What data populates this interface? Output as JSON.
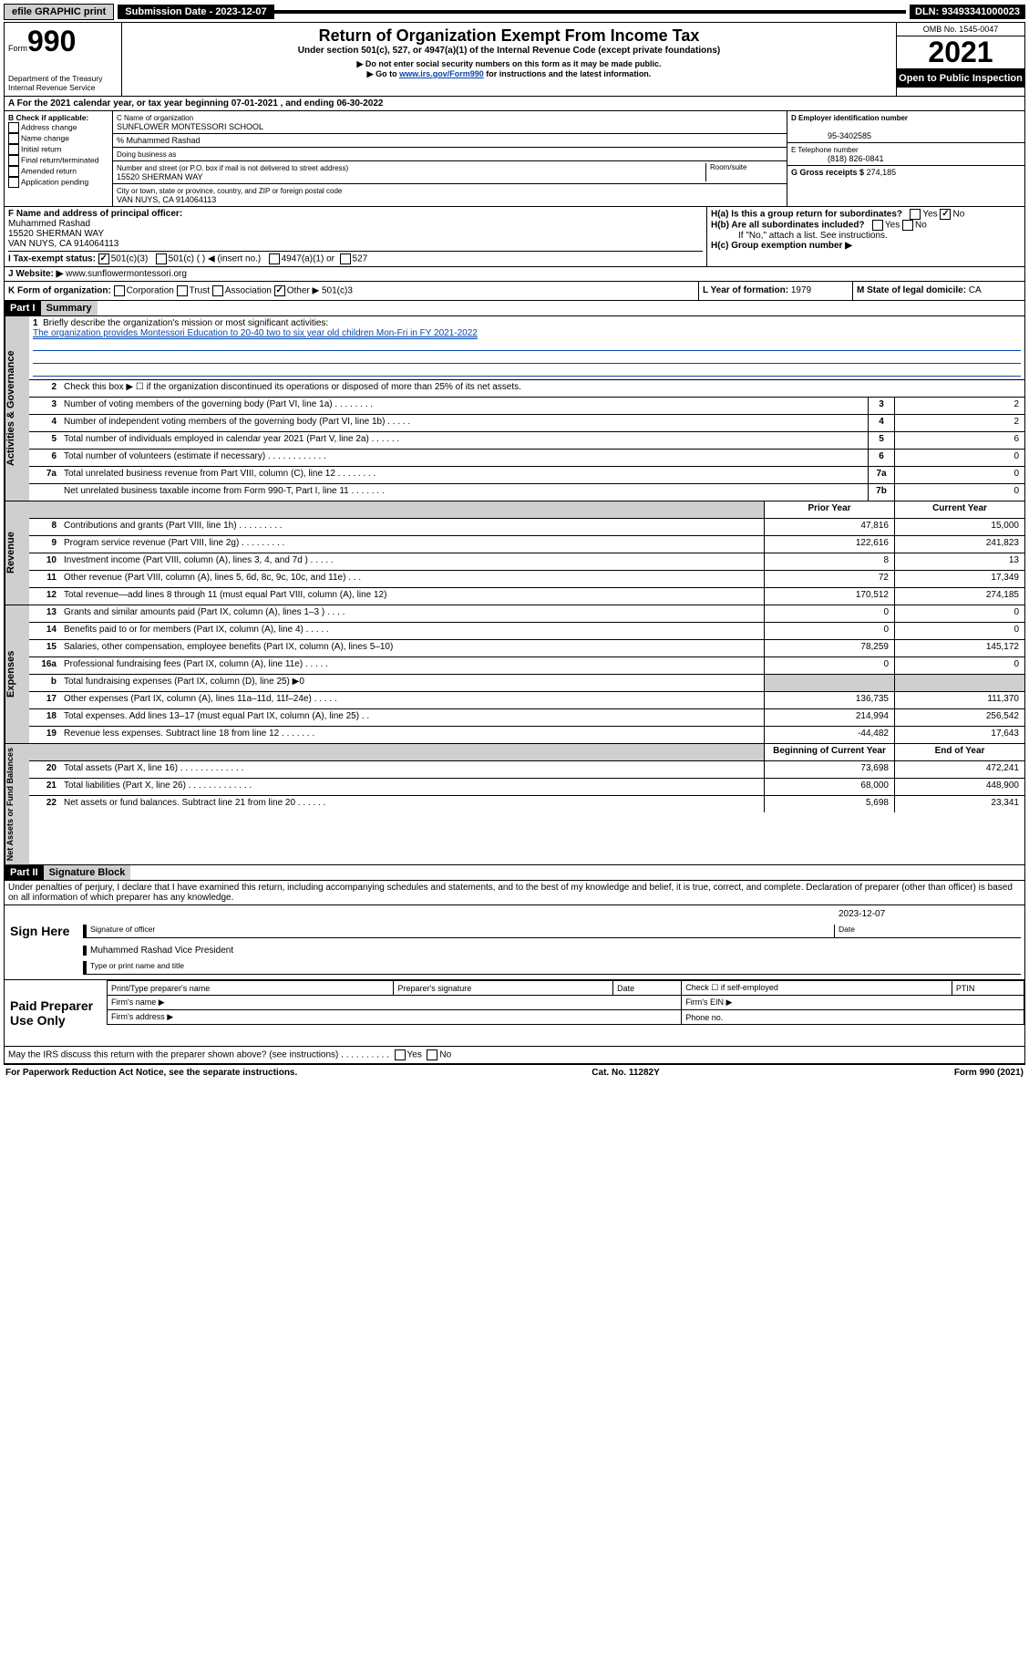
{
  "topbar": {
    "efile": "efile GRAPHIC print",
    "submission_label": "Submission Date - 2023-12-07",
    "dln": "DLN: 93493341000023"
  },
  "header": {
    "form_word": "Form",
    "form_no": "990",
    "dept": "Department of the Treasury\nInternal Revenue Service",
    "title": "Return of Organization Exempt From Income Tax",
    "subtitle": "Under section 501(c), 527, or 4947(a)(1) of the Internal Revenue Code (except private foundations)",
    "note1": "▶ Do not enter social security numbers on this form as it may be made public.",
    "note2_pre": "▶ Go to ",
    "note2_link": "www.irs.gov/Form990",
    "note2_post": " for instructions and the latest information.",
    "omb": "OMB No. 1545-0047",
    "year": "2021",
    "inspect": "Open to Public Inspection"
  },
  "A": {
    "text": "A For the 2021 calendar year, or tax year beginning 07-01-2021   , and ending 06-30-2022"
  },
  "B": {
    "label": "B Check if applicable:",
    "opts": [
      "Address change",
      "Name change",
      "Initial return",
      "Final return/terminated",
      "Amended return",
      "Application pending"
    ]
  },
  "C": {
    "name_lbl": "C Name of organization",
    "name": "SUNFLOWER MONTESSORI SCHOOL",
    "care": "% Muhammed Rashad",
    "dba_lbl": "Doing business as",
    "addr_lbl": "Number and street (or P.O. box if mail is not delivered to street address)",
    "room_lbl": "Room/suite",
    "addr": "15520 SHERMAN WAY",
    "city_lbl": "City or town, state or province, country, and ZIP or foreign postal code",
    "city": "VAN NUYS, CA  914064113"
  },
  "D": {
    "lbl": "D Employer identification number",
    "val": "95-3402585"
  },
  "E": {
    "lbl": "E Telephone number",
    "val": "(818) 826-0841"
  },
  "G": {
    "lbl": "G Gross receipts $",
    "val": "274,185"
  },
  "F": {
    "lbl": "F  Name and address of principal officer:",
    "name": "Muhammed Rashad",
    "addr1": "15520 SHERMAN WAY",
    "addr2": "VAN NUYS, CA  914064113"
  },
  "H": {
    "a": "H(a)  Is this a group return for subordinates?",
    "b": "H(b)  Are all subordinates included?",
    "bnote": "If \"No,\" attach a list. See instructions.",
    "c": "H(c)  Group exemption number ▶",
    "yes": "Yes",
    "no": "No"
  },
  "I": {
    "lbl": "I     Tax-exempt status:",
    "o1": "501(c)(3)",
    "o2": "501(c) (   ) ◀ (insert no.)",
    "o3": "4947(a)(1) or",
    "o4": "527"
  },
  "J": {
    "lbl": "J    Website: ▶",
    "val": "www.sunflowermontessori.org"
  },
  "K": {
    "lbl": "K Form of organization:",
    "o1": "Corporation",
    "o2": "Trust",
    "o3": "Association",
    "o4": "Other ▶",
    "oval": "501(c)3"
  },
  "L": {
    "lbl": "L Year of formation:",
    "val": "1979"
  },
  "M": {
    "lbl": "M State of legal domicile:",
    "val": "CA"
  },
  "part1": {
    "hdr": "Part I",
    "title": "Summary"
  },
  "summary": {
    "q1": "Briefly describe the organization's mission or most significant activities:",
    "mission": "The organization provides Montessori Education to 20-40 two to six year old children Mon-Fri in FY 2021-2022",
    "q2": "Check this box ▶ ☐  if the organization discontinued its operations or disposed of more than 25% of its net assets.",
    "lines_a": [
      {
        "n": "3",
        "d": "Number of voting members of the governing body (Part VI, line 1a)   .    .    .    .    .    .    .    .",
        "b": "3",
        "v": "2"
      },
      {
        "n": "4",
        "d": "Number of independent voting members of the governing body (Part VI, line 1b)   .    .    .    .    .",
        "b": "4",
        "v": "2"
      },
      {
        "n": "5",
        "d": "Total number of individuals employed in calendar year 2021 (Part V, line 2a)   .    .    .    .    .    .",
        "b": "5",
        "v": "6"
      },
      {
        "n": "6",
        "d": "Total number of volunteers (estimate if necessary)   .    .    .    .    .    .    .    .    .    .    .    .",
        "b": "6",
        "v": "0"
      },
      {
        "n": "7a",
        "d": "Total unrelated business revenue from Part VIII, column (C), line 12   .    .    .    .    .    .    .    .",
        "b": "7a",
        "v": "0"
      },
      {
        "n": "",
        "d": "Net unrelated business taxable income from Form 990-T, Part I, line 11   .    .    .    .    .    .    .",
        "b": "7b",
        "v": "0"
      }
    ],
    "col_prior": "Prior Year",
    "col_curr": "Current Year",
    "rev": [
      {
        "n": "8",
        "d": "Contributions and grants (Part VIII, line 1h)   .    .    .    .    .    .    .    .    .",
        "p": "47,816",
        "c": "15,000"
      },
      {
        "n": "9",
        "d": "Program service revenue (Part VIII, line 2g)    .    .    .    .    .    .    .    .    .",
        "p": "122,616",
        "c": "241,823"
      },
      {
        "n": "10",
        "d": "Investment income (Part VIII, column (A), lines 3, 4, and 7d )   .    .    .    .    .",
        "p": "8",
        "c": "13"
      },
      {
        "n": "11",
        "d": "Other revenue (Part VIII, column (A), lines 5, 6d, 8c, 9c, 10c, and 11e)   .    .    .",
        "p": "72",
        "c": "17,349"
      },
      {
        "n": "12",
        "d": "Total revenue—add lines 8 through 11 (must equal Part VIII, column (A), line 12)",
        "p": "170,512",
        "c": "274,185"
      }
    ],
    "exp": [
      {
        "n": "13",
        "d": "Grants and similar amounts paid (Part IX, column (A), lines 1–3 )   .    .    .    .",
        "p": "0",
        "c": "0"
      },
      {
        "n": "14",
        "d": "Benefits paid to or for members (Part IX, column (A), line 4)   .    .    .    .    .",
        "p": "0",
        "c": "0"
      },
      {
        "n": "15",
        "d": "Salaries, other compensation, employee benefits (Part IX, column (A), lines 5–10)",
        "p": "78,259",
        "c": "145,172"
      },
      {
        "n": "16a",
        "d": "Professional fundraising fees (Part IX, column (A), line 11e)   .    .    .    .    .",
        "p": "0",
        "c": "0"
      },
      {
        "n": "b",
        "d": "Total fundraising expenses (Part IX, column (D), line 25) ▶0",
        "p": "",
        "c": "",
        "gray": true
      },
      {
        "n": "17",
        "d": "Other expenses (Part IX, column (A), lines 11a–11d, 11f–24e)   .    .    .    .    .",
        "p": "136,735",
        "c": "111,370"
      },
      {
        "n": "18",
        "d": "Total expenses. Add lines 13–17 (must equal Part IX, column (A), line 25)    .    .",
        "p": "214,994",
        "c": "256,542"
      },
      {
        "n": "19",
        "d": "Revenue less expenses. Subtract line 18 from line 12   .    .    .    .    .    .    .",
        "p": "-44,482",
        "c": "17,643"
      }
    ],
    "col_beg": "Beginning of Current Year",
    "col_end": "End of Year",
    "net": [
      {
        "n": "20",
        "d": "Total assets (Part X, line 16)   .    .    .    .    .    .    .    .    .    .    .    .    .",
        "p": "73,698",
        "c": "472,241"
      },
      {
        "n": "21",
        "d": "Total liabilities (Part X, line 26)   .    .    .    .    .    .    .    .    .    .    .    .    .",
        "p": "68,000",
        "c": "448,900"
      },
      {
        "n": "22",
        "d": "Net assets or fund balances. Subtract line 21 from line 20   .    .    .    .    .    .",
        "p": "5,698",
        "c": "23,341"
      }
    ],
    "tabs": {
      "a": "Activities & Governance",
      "r": "Revenue",
      "e": "Expenses",
      "n": "Net Assets or Fund Balances"
    }
  },
  "part2": {
    "hdr": "Part II",
    "title": "Signature Block",
    "decl": "Under penalties of perjury, I declare that I have examined this return, including accompanying schedules and statements, and to the best of my knowledge and belief, it is true, correct, and complete. Declaration of preparer (other than officer) is based on all information of which preparer has any knowledge."
  },
  "sign": {
    "here": "Sign Here",
    "sig_lbl": "Signature of officer",
    "date_lbl": "Date",
    "date": "2023-12-07",
    "name": "Muhammed Rashad  Vice President",
    "name_lbl": "Type or print name and title"
  },
  "prep": {
    "lbl": "Paid Preparer Use Only",
    "c1": "Print/Type preparer's name",
    "c2": "Preparer's signature",
    "c3": "Date",
    "c4": "Check ☐ if self-employed",
    "c5": "PTIN",
    "r2a": "Firm's name    ▶",
    "r2b": "Firm's EIN ▶",
    "r3a": "Firm's address ▶",
    "r3b": "Phone no."
  },
  "bottom": {
    "q": "May the IRS discuss this return with the preparer shown above? (see instructions)   .    .    .    .    .    .    .    .    .    .",
    "yes": "Yes",
    "no": "No",
    "pra": "For Paperwork Reduction Act Notice, see the separate instructions.",
    "cat": "Cat. No. 11282Y",
    "form": "Form 990 (2021)"
  }
}
